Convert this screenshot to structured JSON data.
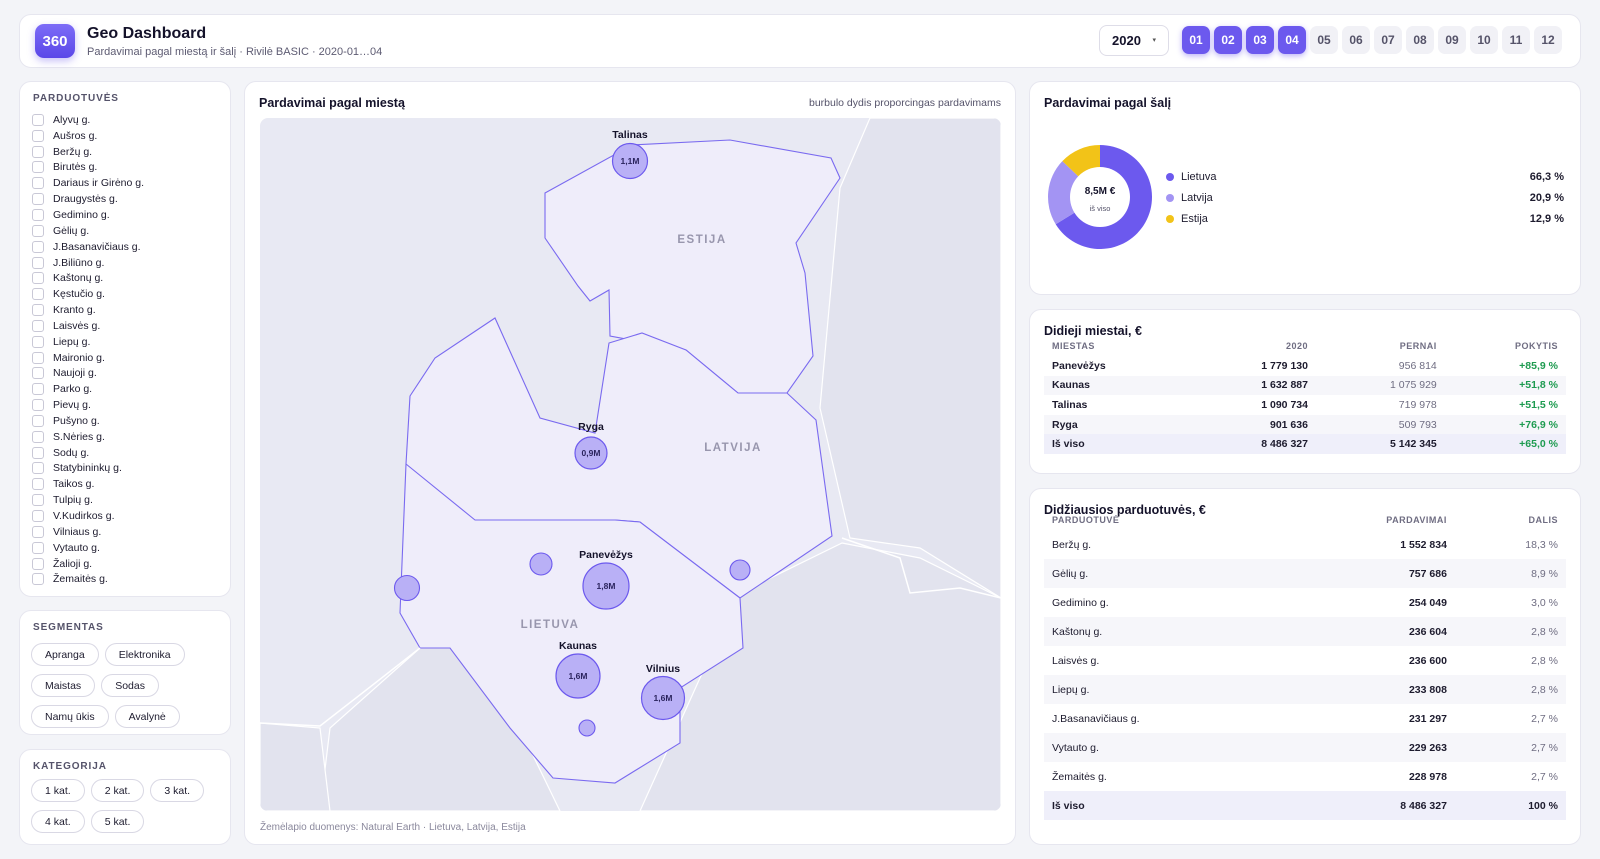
{
  "header": {
    "logo": "360",
    "title": "Geo Dashboard",
    "subtitle": "Pardavimai pagal miestą ir šalį · Rivilė BASIC · 2020-01…04",
    "year": "2020",
    "months": [
      {
        "label": "01",
        "active": true
      },
      {
        "label": "02",
        "active": true
      },
      {
        "label": "03",
        "active": true
      },
      {
        "label": "04",
        "active": true
      },
      {
        "label": "05",
        "active": false
      },
      {
        "label": "06",
        "active": false
      },
      {
        "label": "07",
        "active": false
      },
      {
        "label": "08",
        "active": false
      },
      {
        "label": "09",
        "active": false
      },
      {
        "label": "10",
        "active": false
      },
      {
        "label": "11",
        "active": false
      },
      {
        "label": "12",
        "active": false
      }
    ]
  },
  "stores_filter": {
    "title": "PARDUOTUVĖS",
    "items": [
      "Alyvų g.",
      "Aušros g.",
      "Beržų g.",
      "Birutės g.",
      "Dariaus ir Girėno g.",
      "Draugystės g.",
      "Gedimino g.",
      "Gėlių g.",
      "J.Basanavičiaus g.",
      "J.Biliūno g.",
      "Kaštonų g.",
      "Kęstučio g.",
      "Kranto g.",
      "Laisvės g.",
      "Liepų g.",
      "Maironio g.",
      "Naujoji g.",
      "Parko g.",
      "Pievų g.",
      "Pušyno g.",
      "S.Nėries g.",
      "Sodų g.",
      "Statybininkų g.",
      "Taikos g.",
      "Tulpių g.",
      "V.Kudirkos g.",
      "Vilniaus g.",
      "Vytauto g.",
      "Žalioji g.",
      "Žemaitės g."
    ]
  },
  "segments": {
    "title": "SEGMENTAS",
    "items": [
      "Apranga",
      "Elektronika",
      "Maistas",
      "Sodas",
      "Namų ūkis",
      "Avalynė"
    ]
  },
  "categories": {
    "title": "KATEGORIJA",
    "items": [
      "1 kat.",
      "2 kat.",
      "3 kat.",
      "4 kat.",
      "5 kat."
    ]
  },
  "map": {
    "title": "Pardavimai pagal miestą",
    "hint": "burbulo dydis proporcingas pardavimams",
    "credit": "Žemėlapio duomenys: Natural Earth · Lietuva, Latvija, Estija",
    "countries": [
      "ESTIJA",
      "LATVIJA",
      "LIETUVA"
    ],
    "cities": [
      {
        "name": "Talinas",
        "value_label": "1,1M",
        "value": 1090734
      },
      {
        "name": "Ryga",
        "value_label": "0,9M",
        "value": 901636
      },
      {
        "name": "Panevėžys",
        "value_label": "1,8M",
        "value": 1779130
      },
      {
        "name": "Kaunas",
        "value_label": "1,6M",
        "value": 1632887
      },
      {
        "name": "Vilnius",
        "value_label": "1,6M",
        "value": 1600000
      }
    ]
  },
  "country_share": {
    "title": "Pardavimai pagal šalį",
    "center_value": "8,5M €",
    "center_label": "iš viso",
    "slices": [
      {
        "name": "Lietuva",
        "pct_label": "66,3 %",
        "value": 66.3,
        "color": "#6c59ee"
      },
      {
        "name": "Latvija",
        "pct_label": "20,9 %",
        "value": 20.9,
        "color": "#a394f3"
      },
      {
        "name": "Estija",
        "pct_label": "12,9 %",
        "value": 12.9,
        "color": "#f2c318"
      }
    ]
  },
  "big_cities": {
    "title": "Didieji miestai, €",
    "columns": [
      "MIESTAS",
      "2020",
      "PERNAI",
      "POKYTIS"
    ],
    "rows": [
      [
        "Panevėžys",
        "1 779 130",
        "956 814",
        "+85,9 %"
      ],
      [
        "Kaunas",
        "1 632 887",
        "1 075 929",
        "+51,8 %"
      ],
      [
        "Talinas",
        "1 090 734",
        "719 978",
        "+51,5 %"
      ],
      [
        "Ryga",
        "901 636",
        "509 793",
        "+76,9 %"
      ]
    ],
    "total": [
      "Iš viso",
      "8 486 327",
      "5 142 345",
      "+65,0 %"
    ]
  },
  "top_stores": {
    "title": "Didžiausios parduotuvės, €",
    "columns": [
      "PARDUOTUVĖ",
      "PARDAVIMAI",
      "DALIS"
    ],
    "rows": [
      [
        "Beržų g.",
        "1 552 834",
        "18,3 %"
      ],
      [
        "Gėlių g.",
        "757 686",
        "8,9 %"
      ],
      [
        "Gedimino g.",
        "254 049",
        "3,0 %"
      ],
      [
        "Kaštonų g.",
        "236 604",
        "2,8 %"
      ],
      [
        "Laisvės g.",
        "236 600",
        "2,8 %"
      ],
      [
        "Liepų g.",
        "233 808",
        "2,8 %"
      ],
      [
        "J.Basanavičiaus g.",
        "231 297",
        "2,7 %"
      ],
      [
        "Vytauto g.",
        "229 263",
        "2,7 %"
      ],
      [
        "Žemaitės g.",
        "228 978",
        "2,7 %"
      ]
    ],
    "total": [
      "Iš viso",
      "8 486 327",
      "100 %"
    ]
  }
}
